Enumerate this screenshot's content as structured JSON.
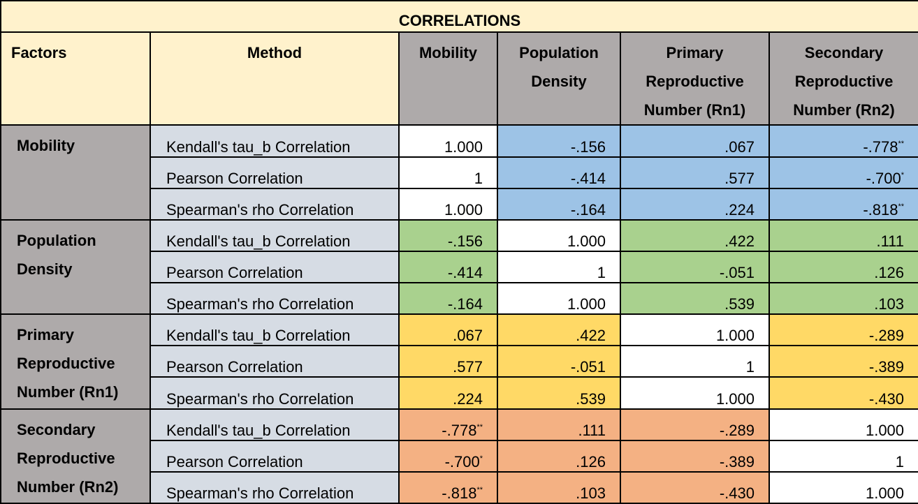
{
  "title": "CORRELATIONS",
  "headers": {
    "factors": "Factors",
    "method": "Method",
    "columns": [
      {
        "line1": "Mobility",
        "line2": "",
        "line3": ""
      },
      {
        "line1": "Population",
        "line2": "Density",
        "line3": ""
      },
      {
        "line1": "Primary",
        "line2": "Reproductive",
        "line3": "Number (Rn1)"
      },
      {
        "line1": "Secondary",
        "line2": "Reproductive",
        "line3": "Number (Rn2)"
      }
    ]
  },
  "methods": [
    "Kendall's tau_b Correlation",
    "Pearson Correlation",
    "Spearman's rho Correlation"
  ],
  "colors": {
    "mobility": "#9dc3e6",
    "population_density": "#a9d18e",
    "rn1": "#ffd966",
    "rn2": "#f4b183",
    "diagonal": "#ffffff",
    "header_cream": "#fff2cc",
    "header_gray": "#aeaaaa",
    "method_blue_gray": "#d6dce4"
  },
  "groups": [
    {
      "factor": {
        "line1": "Mobility",
        "line2": "",
        "line3": ""
      },
      "color": "#9dc3e6",
      "rows": [
        [
          {
            "v": "1.000",
            "s": ""
          },
          {
            "v": "-.156",
            "s": ""
          },
          {
            "v": ".067",
            "s": ""
          },
          {
            "v": "-.778",
            "s": "**"
          }
        ],
        [
          {
            "v": "1",
            "s": ""
          },
          {
            "v": "-.414",
            "s": ""
          },
          {
            "v": ".577",
            "s": ""
          },
          {
            "v": "-.700",
            "s": "*"
          }
        ],
        [
          {
            "v": "1.000",
            "s": ""
          },
          {
            "v": "-.164",
            "s": ""
          },
          {
            "v": ".224",
            "s": ""
          },
          {
            "v": "-.818",
            "s": "**"
          }
        ]
      ]
    },
    {
      "factor": {
        "line1": "Population",
        "line2": "Density",
        "line3": ""
      },
      "color": "#a9d18e",
      "rows": [
        [
          {
            "v": "-.156",
            "s": ""
          },
          {
            "v": "1.000",
            "s": ""
          },
          {
            "v": ".422",
            "s": ""
          },
          {
            "v": ".111",
            "s": ""
          }
        ],
        [
          {
            "v": "-.414",
            "s": ""
          },
          {
            "v": "1",
            "s": ""
          },
          {
            "v": "-.051",
            "s": ""
          },
          {
            "v": ".126",
            "s": ""
          }
        ],
        [
          {
            "v": "-.164",
            "s": ""
          },
          {
            "v": "1.000",
            "s": ""
          },
          {
            "v": ".539",
            "s": ""
          },
          {
            "v": ".103",
            "s": ""
          }
        ]
      ]
    },
    {
      "factor": {
        "line1": "Primary",
        "line2": "Reproductive",
        "line3": "Number (Rn1)"
      },
      "color": "#ffd966",
      "rows": [
        [
          {
            "v": ".067",
            "s": ""
          },
          {
            "v": ".422",
            "s": ""
          },
          {
            "v": "1.000",
            "s": ""
          },
          {
            "v": "-.289",
            "s": ""
          }
        ],
        [
          {
            "v": ".577",
            "s": ""
          },
          {
            "v": "-.051",
            "s": ""
          },
          {
            "v": "1",
            "s": ""
          },
          {
            "v": "-.389",
            "s": ""
          }
        ],
        [
          {
            "v": ".224",
            "s": ""
          },
          {
            "v": ".539",
            "s": ""
          },
          {
            "v": "1.000",
            "s": ""
          },
          {
            "v": "-.430",
            "s": ""
          }
        ]
      ]
    },
    {
      "factor": {
        "line1": "Secondary",
        "line2": "Reproductive",
        "line3": "Number (Rn2)"
      },
      "color": "#f4b183",
      "rows": [
        [
          {
            "v": "-.778",
            "s": "**"
          },
          {
            "v": ".111",
            "s": ""
          },
          {
            "v": "-.289",
            "s": ""
          },
          {
            "v": "1.000",
            "s": ""
          }
        ],
        [
          {
            "v": "-.700",
            "s": "*"
          },
          {
            "v": ".126",
            "s": ""
          },
          {
            "v": "-.389",
            "s": ""
          },
          {
            "v": "1",
            "s": ""
          }
        ],
        [
          {
            "v": "-.818",
            "s": "**"
          },
          {
            "v": ".103",
            "s": ""
          },
          {
            "v": "-.430",
            "s": ""
          },
          {
            "v": "1.000",
            "s": ""
          }
        ]
      ]
    }
  ]
}
